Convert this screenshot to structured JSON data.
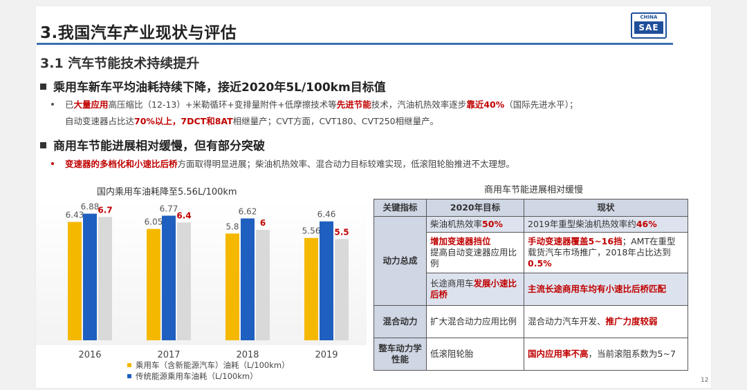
{
  "title": "3.我国汽车产业现状与评估",
  "logo": {
    "top": "CHINA",
    "bottom": "SAE"
  },
  "subtitle": "3.1 汽车节能技术持续提升",
  "sec1": {
    "heading": "乘用车新车平均油耗持续下降，接近2020年5L/100km目标值",
    "line1": [
      {
        "t": "已",
        "red": false
      },
      {
        "t": "大量应用",
        "red": true
      },
      {
        "t": "高压缩比（12-13）+米勒循环+变排量附件+低摩擦技术等",
        "red": false
      },
      {
        "t": "先进节能",
        "red": true
      },
      {
        "t": "技术，汽油机热效率逐步",
        "red": false
      },
      {
        "t": "靠近40%",
        "red": true
      },
      {
        "t": "（国际先进水平）；",
        "red": false
      }
    ],
    "line2": [
      {
        "t": "自动变速器占比达",
        "red": false
      },
      {
        "t": "70%以上，7DCT和8AT",
        "red": true
      },
      {
        "t": "相继量产；CVT方面，CVT180、CVT250相继量产。",
        "red": false
      }
    ]
  },
  "sec2": {
    "heading": "商用车节能进展相对缓慢，但有部分突破",
    "line1": [
      {
        "t": "变速器的多档化和小速比后桥",
        "red": true
      },
      {
        "t": "方面取得明显进展；柴油机热效率、混合动力目标较难实现，低滚阻轮胎推进不太理想。",
        "red": false
      }
    ]
  },
  "chart_data": {
    "type": "bar",
    "title": "国内乘用车油耗降至5.56L/100km",
    "categories": [
      "2016",
      "2017",
      "2018",
      "2019"
    ],
    "series": [
      {
        "name": "乘用车（含新能源汽车）油耗（L/100km）",
        "color": "#f5b800",
        "values": [
          6.43,
          6.05,
          5.8,
          5.56
        ]
      },
      {
        "name": "传统能源乘用车油耗（L/100km）",
        "color": "#1f5fbf",
        "values": [
          6.88,
          6.77,
          6.62,
          6.46
        ]
      },
      {
        "name": "",
        "color": "#d9d9d9",
        "label_color": "#c00000",
        "values": [
          6.7,
          6.4,
          6,
          5.5
        ]
      }
    ],
    "ylim": [
      0,
      7.5
    ]
  },
  "table": {
    "title": "商用车节能进展相对缓慢",
    "headers": [
      "关键指标",
      "2020年目标",
      "现状"
    ],
    "group1": "动力总成",
    "group2": "混合动力",
    "group3": "整车动力学性能",
    "r1": {
      "target": [
        {
          "t": "柴油机热效率",
          "red": false
        },
        {
          "t": "50%",
          "red": true
        }
      ],
      "status": [
        {
          "t": "2019年重型柴油机热效率约",
          "red": false
        },
        {
          "t": "46%",
          "red": true
        }
      ]
    },
    "r2": {
      "target": [
        {
          "t": "增加变速器挡位",
          "red": true
        },
        {
          "t": "提高自动变速器应用比例",
          "red": false
        }
      ],
      "status": [
        {
          "t": "手动变速器覆盖5~16挡",
          "red": true
        },
        {
          "t": "；AMT在重型载货汽车市场推广，2018年占比达到",
          "red": false
        },
        {
          "t": "0.5%",
          "red": true
        }
      ]
    },
    "r3": {
      "target": [
        {
          "t": "长途商用车",
          "red": false
        },
        {
          "t": "发展小速比后桥",
          "red": true
        }
      ],
      "status": [
        {
          "t": "主流长途商用车均有小速比后桥匹配",
          "red": true
        }
      ]
    },
    "r4": {
      "target": [
        {
          "t": "扩大混合动力应用比例",
          "red": false
        }
      ],
      "status": [
        {
          "t": "混合动力汽车开发、",
          "red": false
        },
        {
          "t": "推广力度较弱",
          "red": true
        }
      ]
    },
    "r5": {
      "target": [
        {
          "t": "低滚阻轮胎",
          "red": false
        }
      ],
      "status": [
        {
          "t": "国内应用率不高",
          "red": true
        },
        {
          "t": "，当前滚阻系数为5~7",
          "red": false
        }
      ]
    }
  },
  "page_number": "12"
}
